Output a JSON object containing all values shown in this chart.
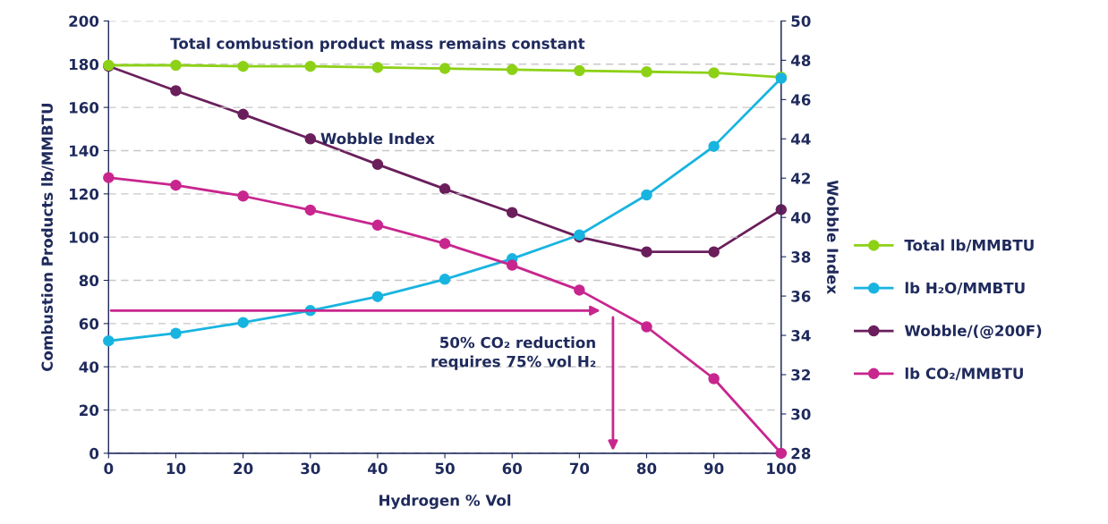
{
  "chart_data": {
    "type": "line",
    "xlabel": "Hydrogen % Vol",
    "ylabel": "Combustion Products lb/MMBTU",
    "y2label": "Wobble Index",
    "x": [
      0,
      10,
      20,
      30,
      40,
      50,
      60,
      70,
      80,
      90,
      100
    ],
    "series": [
      {
        "name": "Total lb/MMBTU",
        "color": "#8dd117",
        "values": [
          179.5,
          179.5,
          179,
          179,
          178.5,
          178,
          177.5,
          177,
          176.5,
          176,
          174
        ]
      },
      {
        "name": "lb H₂O/MMBTU",
        "color": "#18b4e0",
        "values": [
          52,
          55.5,
          60.5,
          66,
          72.5,
          80.5,
          90,
          101,
          119.5,
          142,
          173.5
        ]
      },
      {
        "name": "Wobble/(@200F)",
        "color": "#6a1f5c",
        "axis": "y2",
        "values": [
          47.7,
          46.45,
          45.25,
          44,
          42.7,
          41.45,
          40.25,
          39,
          38.25,
          38.25,
          40.4
        ]
      },
      {
        "name": "lb CO₂/MMBTU",
        "color": "#c8268e",
        "values": [
          127.5,
          124,
          119,
          112.5,
          105.5,
          97,
          87,
          75.5,
          58.5,
          34.5,
          0
        ]
      }
    ],
    "xlim": [
      0,
      100
    ],
    "xticks": [
      0,
      10,
      20,
      30,
      40,
      50,
      60,
      70,
      80,
      90,
      100
    ],
    "ylim": [
      0,
      200
    ],
    "yticks": [
      0,
      20,
      40,
      60,
      80,
      100,
      120,
      140,
      160,
      180,
      200
    ],
    "y2lim": [
      28,
      50
    ],
    "y2ticks": [
      28,
      30,
      32,
      34,
      36,
      38,
      40,
      42,
      44,
      46,
      48,
      50
    ],
    "annotations": [
      "Total combustion product mass remains constant",
      "Wobble Index",
      {
        "text": "50% CO₂ reduction\nrequires 75% vol H₂",
        "x": 75,
        "y": 66
      }
    ],
    "grid": "y",
    "legend": "right",
    "marker": "circle",
    "line_style": "solid"
  }
}
